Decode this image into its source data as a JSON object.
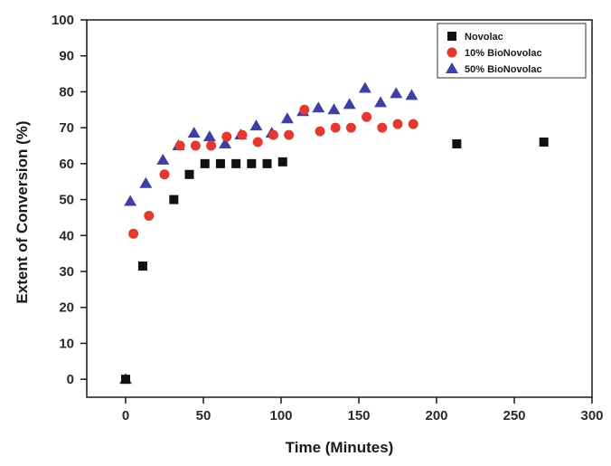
{
  "chart_data": {
    "type": "scatter",
    "title": "",
    "xlabel": "Time (Minutes)",
    "ylabel": "Extent of Conversion (%)",
    "xlim": [
      -25,
      300
    ],
    "ylim": [
      -5,
      100
    ],
    "xticks": [
      0,
      50,
      100,
      150,
      200,
      250,
      300
    ],
    "yticks": [
      0,
      10,
      20,
      30,
      40,
      50,
      60,
      70,
      80,
      90,
      100
    ],
    "grid": false,
    "legend_position": "top-right",
    "series": [
      {
        "name": "Novolac",
        "marker": "square",
        "color": "#111111",
        "x": [
          0,
          11,
          31,
          41,
          51,
          61,
          71,
          81,
          91,
          101,
          213,
          269
        ],
        "y": [
          0,
          31.5,
          50,
          57,
          60,
          60,
          60,
          60,
          60,
          60.5,
          65.5,
          66
        ]
      },
      {
        "name": "10% BioNovolac",
        "marker": "circle",
        "color": "#e23a30",
        "x": [
          5,
          15,
          25,
          35,
          45,
          55,
          65,
          75,
          85,
          95,
          105,
          115,
          125,
          135,
          145,
          155,
          165,
          175,
          185
        ],
        "y": [
          40.5,
          45.5,
          57,
          65,
          65,
          65,
          67.5,
          68,
          66,
          68,
          68,
          75,
          69,
          70,
          70,
          73,
          70,
          71,
          71
        ]
      },
      {
        "name": "50% BioNovolac",
        "marker": "triangle",
        "color": "#3f3fa6",
        "x": [
          0,
          3,
          13,
          24,
          34,
          44,
          54,
          64,
          74,
          84,
          94,
          104,
          114,
          124,
          134,
          144,
          154,
          164,
          174,
          184
        ],
        "y": [
          0,
          49.5,
          54.5,
          61,
          65,
          68.5,
          67.5,
          65.5,
          68,
          70.5,
          68.5,
          72.5,
          74.5,
          75.5,
          75,
          76.5,
          81,
          77,
          79.5,
          79
        ]
      }
    ]
  }
}
